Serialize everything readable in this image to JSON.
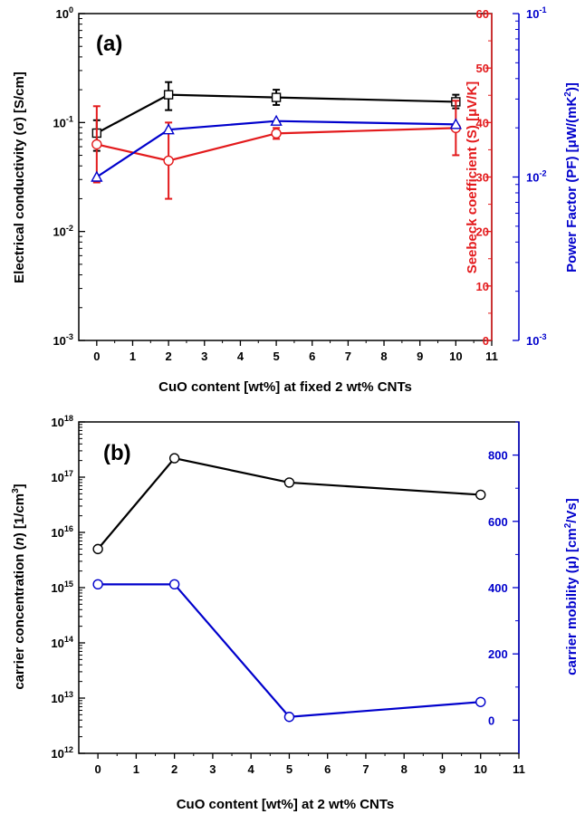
{
  "colors": {
    "black": "#000000",
    "red": "#e31a1c",
    "blue": "#0000cc"
  },
  "chart_data": [
    {
      "type": "line",
      "panel_label": "(a)",
      "xlabel": "CuO content [wt%] at fixed 2 wt% CNTs",
      "xlim": [
        -0.5,
        11
      ],
      "xticks": [
        "0",
        "1",
        "2",
        "3",
        "4",
        "5",
        "6",
        "7",
        "8",
        "9",
        "10",
        "11"
      ],
      "y_left": {
        "label": "Electrical conductivity (σ) [S/cm]",
        "scale": "log",
        "lim": [
          0.001,
          1
        ],
        "ticks": [
          {
            "base": "10",
            "exp": "0"
          },
          {
            "base": "10",
            "exp": "-1"
          },
          {
            "base": "10",
            "exp": "-2"
          },
          {
            "base": "10",
            "exp": "-3"
          }
        ]
      },
      "y_right1": {
        "label": "Seebeck coefficient (S) [μV/K]",
        "scale": "linear",
        "lim": [
          0,
          60
        ],
        "ticks": [
          "0",
          "10",
          "20",
          "30",
          "40",
          "50",
          "60"
        ]
      },
      "y_right2": {
        "label_parts": [
          "Power Factor (PF) [μW/(mK",
          "2",
          ")]"
        ],
        "scale": "log",
        "lim": [
          0.001,
          0.1
        ],
        "ticks": [
          {
            "base": "10",
            "exp": "-1"
          },
          {
            "base": "10",
            "exp": "-2"
          },
          {
            "base": "10",
            "exp": "-3"
          }
        ]
      },
      "series": [
        {
          "axis": "left",
          "color": "black",
          "marker": "square",
          "x": [
            0,
            2,
            5,
            10
          ],
          "y": [
            0.08,
            0.18,
            0.17,
            0.155
          ],
          "err_low": [
            0.055,
            0.13,
            0.145,
            0.135
          ],
          "err_high": [
            0.105,
            0.235,
            0.2,
            0.18
          ]
        },
        {
          "axis": "right1",
          "color": "red",
          "marker": "circle",
          "x": [
            0,
            2,
            5,
            10
          ],
          "y": [
            36,
            33,
            38,
            39
          ],
          "err_low": [
            29,
            26,
            37,
            34
          ],
          "err_high": [
            43,
            40,
            39,
            44
          ]
        },
        {
          "axis": "right2",
          "color": "blue",
          "marker": "triangle",
          "x": [
            0,
            2,
            5,
            10
          ],
          "y": [
            0.01,
            0.0195,
            0.022,
            0.021
          ]
        }
      ]
    },
    {
      "type": "line",
      "panel_label": "(b)",
      "xlabel": "CuO content [wt%] at 2 wt% CNTs",
      "xlim": [
        -0.5,
        11
      ],
      "xticks": [
        "0",
        "1",
        "2",
        "3",
        "4",
        "5",
        "6",
        "7",
        "8",
        "9",
        "10",
        "11"
      ],
      "y_left": {
        "label_parts": [
          "carrier concentration (",
          "n",
          ") [1/cm",
          "3",
          "]"
        ],
        "scale": "log",
        "lim": [
          1000000000000.0,
          1e+18
        ],
        "ticks": [
          {
            "base": "10",
            "exp": "18"
          },
          {
            "base": "10",
            "exp": "17"
          },
          {
            "base": "10",
            "exp": "16"
          },
          {
            "base": "10",
            "exp": "15"
          },
          {
            "base": "10",
            "exp": "14"
          },
          {
            "base": "10",
            "exp": "13"
          },
          {
            "base": "10",
            "exp": "12"
          }
        ]
      },
      "y_right": {
        "label_parts": [
          "carrier mobility (μ) [cm",
          "2",
          "/Vs]"
        ],
        "scale": "linear",
        "lim": [
          -100,
          900
        ],
        "ticks": [
          "0",
          "200",
          "400",
          "600",
          "800"
        ]
      },
      "series": [
        {
          "axis": "left",
          "color": "black",
          "marker": "circle",
          "x": [
            0,
            2,
            5,
            10
          ],
          "y": [
            5000000000000000.0,
            2.2e+17,
            8e+16,
            4.8e+16
          ]
        },
        {
          "axis": "right",
          "color": "blue",
          "marker": "circle",
          "x": [
            0,
            2,
            5,
            10
          ],
          "y": [
            410,
            410,
            10,
            55
          ]
        }
      ]
    }
  ]
}
